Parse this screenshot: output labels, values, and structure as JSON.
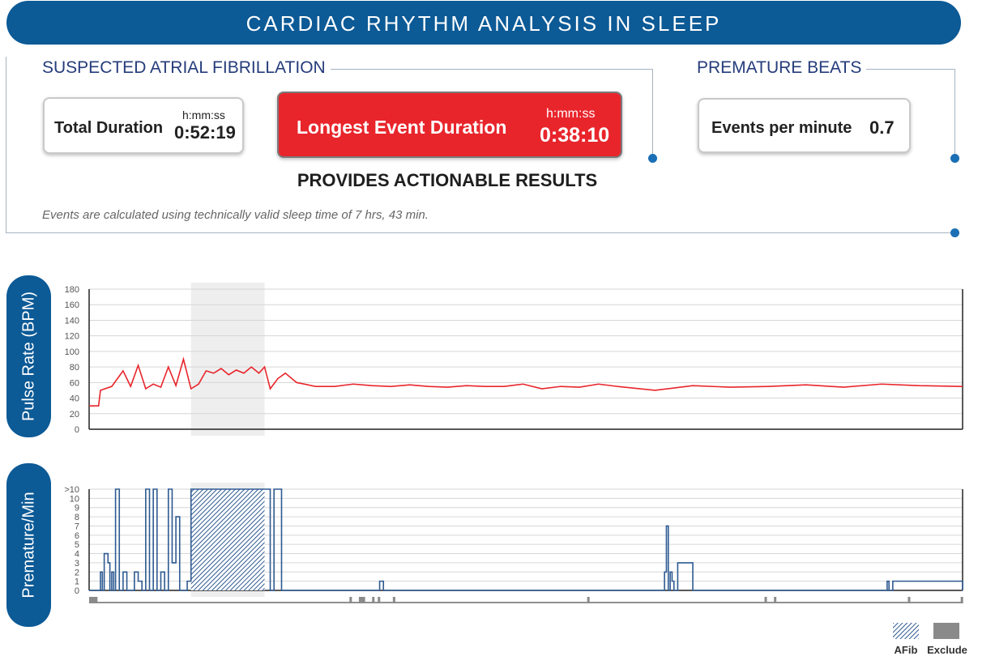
{
  "header": {
    "title": "CARDIAC RHYTHM ANALYSIS IN SLEEP"
  },
  "afib": {
    "title": "SUSPECTED ATRIAL FIBRILLATION",
    "total": {
      "label": "Total Duration",
      "unit": "h:mm:ss",
      "value": "0:52:19"
    },
    "longest": {
      "label": "Longest Event Duration",
      "unit": "h:mm:ss",
      "value": "0:38:10"
    }
  },
  "premature": {
    "title": "PREMATURE BEATS",
    "events": {
      "label": "Events per minute",
      "value": "0.7"
    }
  },
  "actionable": "PROVIDES ACTIONABLE RESULTS",
  "note": "Events are calculated using technically valid sleep time of 7 hrs, 43 min.",
  "colors": {
    "brand": "#0c5a96",
    "alert": "#e8252b",
    "pulse_line": "#e8252b",
    "premature_line": "#2e5a92",
    "exclude": "#8a8a8a",
    "afib_band": "#eeeeee"
  },
  "chart_data": [
    {
      "type": "line",
      "ylabel": "Pulse Rate (BPM)",
      "yticks": [
        "0",
        "20",
        "40",
        "60",
        "80",
        "100",
        "120",
        "140",
        "160",
        "180"
      ],
      "ylim": [
        0,
        180
      ],
      "xlim": [
        0,
        463
      ],
      "afib_region": [
        54,
        93
      ],
      "grid": true,
      "series": [
        {
          "x": [
            0,
            5,
            6,
            12,
            18,
            22,
            26,
            30,
            34,
            38,
            42,
            46,
            50,
            54,
            58,
            62,
            66,
            70,
            74,
            78,
            82,
            86,
            90,
            93,
            96,
            100,
            104,
            110,
            120,
            130,
            140,
            150,
            160,
            170,
            180,
            190,
            200,
            210,
            220,
            230,
            240,
            250,
            260,
            270,
            280,
            300,
            320,
            340,
            360,
            380,
            400,
            420,
            440,
            463
          ],
          "y": [
            30,
            30,
            50,
            55,
            75,
            55,
            82,
            52,
            58,
            54,
            80,
            56,
            90,
            52,
            58,
            75,
            72,
            78,
            70,
            76,
            72,
            80,
            72,
            80,
            52,
            65,
            72,
            60,
            55,
            55,
            58,
            56,
            55,
            57,
            55,
            54,
            56,
            55,
            55,
            58,
            52,
            55,
            54,
            58,
            55,
            50,
            56,
            54,
            55,
            57,
            54,
            58,
            56,
            55
          ]
        }
      ]
    },
    {
      "type": "line",
      "ylabel": "Premature/Min",
      "yticks": [
        "0",
        "1",
        "2",
        "3",
        "4",
        "5",
        "6",
        "7",
        "8",
        "9",
        "10",
        ">10"
      ],
      "ylim": [
        0,
        11
      ],
      "xlim": [
        0,
        463
      ],
      "afib_region": [
        54,
        93
      ],
      "grid": true,
      "series": [
        {
          "x": [
            0,
            5,
            6,
            7,
            8,
            10,
            11,
            12,
            13,
            14,
            16,
            18,
            20,
            22,
            24,
            26,
            28,
            30,
            32,
            34,
            36,
            38,
            40,
            42,
            44,
            46,
            48,
            50,
            52,
            54,
            93,
            96,
            98,
            100,
            102,
            104,
            106,
            108,
            110,
            150,
            154,
            156,
            158,
            160,
            162,
            164,
            180,
            240,
            280,
            300,
            305,
            306,
            307,
            308,
            309,
            310,
            312,
            320,
            350,
            420,
            423,
            424,
            426,
            463
          ],
          "y": [
            0,
            0,
            2,
            0,
            4,
            3,
            0,
            2,
            0,
            11,
            0,
            2,
            0,
            0,
            2,
            1,
            0,
            11,
            0,
            11,
            0,
            2,
            0,
            11,
            3,
            8,
            0,
            0,
            1,
            11,
            11,
            0,
            11,
            11,
            0,
            0,
            0,
            0,
            0,
            0,
            1,
            0,
            0,
            0,
            0,
            0,
            0,
            0,
            0,
            0,
            2,
            7,
            0,
            2,
            1,
            0,
            3,
            0,
            0,
            0,
            1,
            0,
            1,
            0
          ]
        }
      ]
    }
  ],
  "legend": [
    {
      "name": "AFib"
    },
    {
      "name": "Exclude"
    }
  ]
}
